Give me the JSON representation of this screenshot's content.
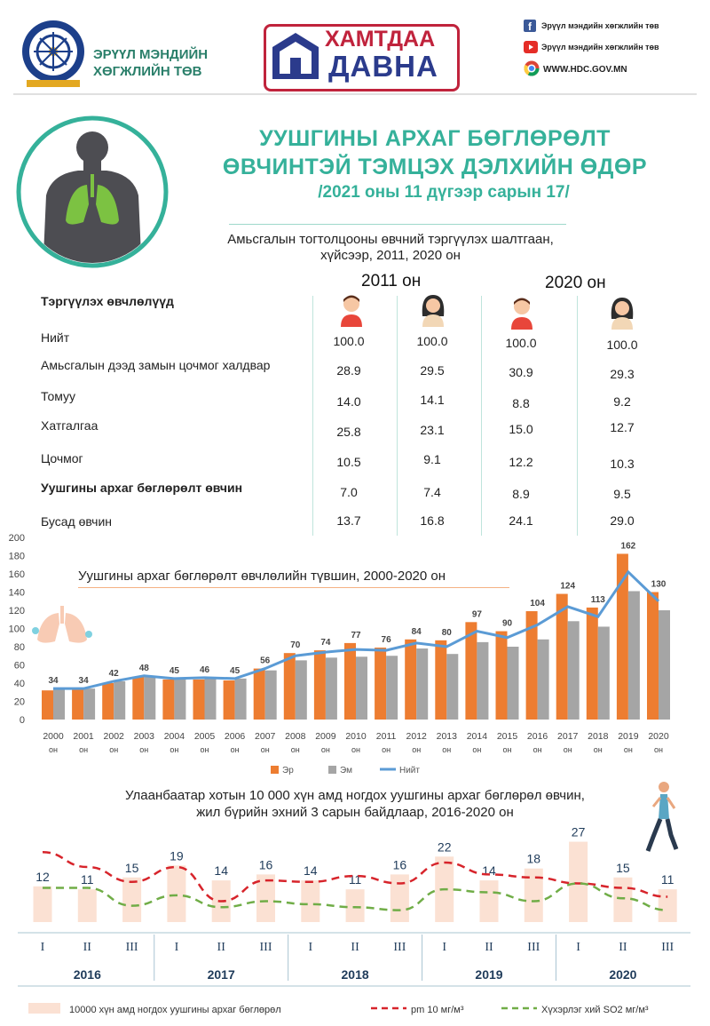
{
  "header": {
    "org_name": "ЭРҮҮЛ МЭНДИЙН\nХӨГЖЛИЙН ТӨВ",
    "badge_line1": "ХАМТДАА",
    "badge_line2": "ДАВНА",
    "social": [
      {
        "icon": "facebook-icon",
        "text": "Эрүүл мэндийн хөгжлийн төв"
      },
      {
        "icon": "youtube-icon",
        "text": "Эрүүл мэндийн хөгжлийн төв"
      },
      {
        "icon": "chrome-icon",
        "text": "WWW.HDC.GOV.MN"
      }
    ]
  },
  "title": {
    "line1": "УУШГИНЫ АРХАГ БӨГЛӨРӨЛТ",
    "line2": "ӨВЧИНТЭЙ ТЭМЦЭХ ДЭЛХИЙН ӨДӨР",
    "date": "/2021 оны 11 дүгээр сарын 17/"
  },
  "table": {
    "caption": "Амьсгалын тогтолцооны өвчний тэргүүлэх шалтгаан,\nхүйсээр, 2011, 2020 он",
    "header_label": "Тэргүүлэх өвчлөлүүд",
    "years": [
      "2011 он",
      "2020 он"
    ],
    "rows": [
      {
        "label": "Нийт",
        "values": [
          "100.0",
          "100.0",
          "100.0",
          "100.0"
        ]
      },
      {
        "label": "Амьсгалын дээд замын цочмог халдвар",
        "values": [
          "28.9",
          "29.5",
          "30.9",
          "29.3"
        ]
      },
      {
        "label": "Томуу",
        "values": [
          "14.0",
          "14.1",
          "8.8",
          "9.2"
        ]
      },
      {
        "label": "Хатгалгаа",
        "values": [
          "25.8",
          "23.1",
          "15.0",
          "12.7"
        ]
      },
      {
        "label": "Цочмог",
        "values": [
          "10.5",
          "9.1",
          "12.2",
          "10.3"
        ]
      },
      {
        "label": "Уушгины архаг бөглөрөлт өвчин",
        "values": [
          "7.0",
          "7.4",
          "8.9",
          "9.5"
        ],
        "bold": true
      },
      {
        "label": "Бусад өвчин",
        "values": [
          "13.7",
          "16.8",
          "24.1",
          "29.0"
        ]
      }
    ]
  },
  "chart_data": [
    {
      "type": "bar",
      "title": "Уушгины архаг бөглөрөлт өвчлөлийн түвшин, 2000-2020 он",
      "categories": [
        "2000",
        "2001",
        "2002",
        "2003",
        "2004",
        "2005",
        "2006",
        "2007",
        "2008",
        "2009",
        "2010",
        "2011",
        "2012",
        "2013",
        "2014",
        "2015",
        "2016",
        "2017",
        "2018",
        "2019",
        "2020"
      ],
      "category_suffix": "он",
      "ylim": [
        0,
        200
      ],
      "yticks": [
        0,
        20,
        40,
        60,
        80,
        100,
        120,
        140,
        160,
        180,
        200
      ],
      "series": [
        {
          "name": "Эр",
          "kind": "bar",
          "color": "#ed7d31",
          "values": [
            32,
            33,
            40,
            47,
            44,
            44,
            43,
            56,
            73,
            76,
            84,
            79,
            88,
            87,
            107,
            97,
            119,
            138,
            123,
            182,
            140
          ]
        },
        {
          "name": "Эм",
          "kind": "bar",
          "color": "#a5a5a5",
          "values": [
            33,
            34,
            42,
            48,
            45,
            46,
            45,
            54,
            65,
            68,
            69,
            70,
            78,
            72,
            85,
            80,
            88,
            108,
            102,
            141,
            120
          ]
        },
        {
          "name": "Нийт",
          "kind": "line",
          "color": "#5b9bd5",
          "values": [
            34,
            34,
            42,
            48,
            45,
            46,
            45,
            56,
            70,
            74,
            77,
            76,
            84,
            80,
            97,
            90,
            104,
            124,
            113,
            162,
            130
          ]
        }
      ],
      "data_labels": [
        "34",
        "34",
        "42",
        "48",
        "45",
        "46",
        "45",
        "56",
        "70",
        "74",
        "77",
        "76",
        "84",
        "80",
        "97",
        "90",
        "104",
        "124",
        "113",
        "162",
        "130"
      ]
    },
    {
      "type": "bar",
      "title": "Улаанбаатар хотын 10 000 хүн амд ногдох уушгины архаг бөглөрөл өвчин,\nжил бүрийн эхний 3 сарын байдлаар, 2016-2020 он",
      "categories": [
        "I",
        "II",
        "III",
        "I",
        "II",
        "III",
        "I",
        "II",
        "III",
        "I",
        "II",
        "III",
        "I",
        "II",
        "III"
      ],
      "groups": [
        "2016",
        "2017",
        "2018",
        "2019",
        "2020"
      ],
      "series": [
        {
          "name": "10000 хүн амд ногдох уушгины архаг бөглөрөл",
          "kind": "bar",
          "color": "#fbe1d3",
          "values": [
            12,
            11,
            15,
            19,
            14,
            16,
            14,
            11,
            16,
            22,
            14,
            18,
            27,
            15,
            11
          ]
        },
        {
          "name": "pm 10 мг/м³",
          "kind": "line",
          "color": "#d7242b",
          "values": [
            23.5,
            18.5,
            13.5,
            18.5,
            7,
            14,
            13.5,
            15.5,
            13,
            20,
            16,
            15,
            13,
            11.5,
            8.5
          ]
        },
        {
          "name": "Хүхэрлэг хий SO2 мг/м³",
          "kind": "line",
          "color": "#70ad47",
          "values": [
            11.5,
            11.5,
            5.5,
            9,
            5,
            7,
            6,
            5,
            4,
            11,
            10,
            7,
            13,
            8,
            4
          ]
        }
      ],
      "data_labels": [
        "12",
        "11",
        "15",
        "19",
        "14",
        "16",
        "14",
        "11",
        "16",
        "22",
        "14",
        "18",
        "27",
        "15",
        "11"
      ]
    }
  ]
}
